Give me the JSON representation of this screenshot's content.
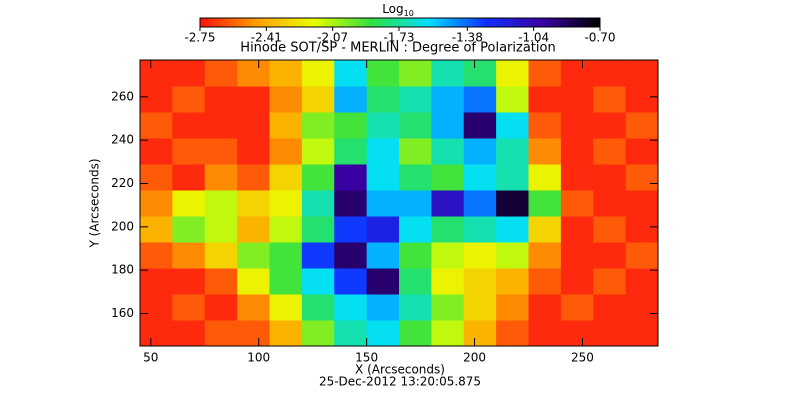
{
  "chart_data": {
    "type": "heatmap",
    "title": "Hinode SOT/SP - MERLIN : Degree of Polarization",
    "subtitle": "25-Dec-2012 13:20:05.875",
    "x_label": "X (Arcseconds)",
    "y_label": "Y (Arcseconds)",
    "colorbar_title": "Log",
    "colorbar_title_sub": "10",
    "xlim": [
      45,
      285
    ],
    "ylim": [
      145,
      277
    ],
    "xticks": [
      50,
      100,
      150,
      200,
      250
    ],
    "yticks": [
      160,
      180,
      200,
      220,
      240,
      260
    ],
    "xbins": [
      45,
      60,
      75,
      90,
      105,
      120,
      135,
      150,
      165,
      180,
      195,
      210,
      225,
      240,
      255,
      270,
      285
    ],
    "ybins": [
      145,
      157,
      169,
      181,
      193,
      205,
      217,
      229,
      241,
      253,
      265,
      277
    ],
    "zlim": [
      -2.75,
      -0.7
    ],
    "zticks": [
      -2.75,
      -2.41,
      -2.07,
      -1.73,
      -1.38,
      -1.04,
      {
        "value": -0.7,
        "label": "-0.70"
      }
    ],
    "colorscale": [
      "#ff1010",
      "#ffa000",
      "#e8ff00",
      "#30e040",
      "#00e0ff",
      "#1030ff",
      "#3a00a0",
      "#000000"
    ],
    "z": [
      [
        -2.7,
        -2.7,
        -2.6,
        -2.6,
        -2.4,
        -2.0,
        -1.7,
        -1.6,
        -1.9,
        -2.1,
        -2.4,
        -2.6,
        -2.7,
        -2.7,
        -2.7,
        -2.7
      ],
      [
        -2.7,
        -2.6,
        -2.7,
        -2.5,
        -2.2,
        -1.8,
        -1.6,
        -1.5,
        -1.7,
        -2.0,
        -2.3,
        -2.5,
        -2.7,
        -2.6,
        -2.7,
        -2.7
      ],
      [
        -2.7,
        -2.7,
        -2.6,
        -2.2,
        -1.9,
        -1.6,
        -1.3,
        -0.9,
        -1.8,
        -2.2,
        -2.3,
        -2.4,
        -2.6,
        -2.7,
        -2.6,
        -2.7
      ],
      [
        -2.6,
        -2.5,
        -2.3,
        -2.0,
        -1.9,
        -1.3,
        -0.9,
        -1.5,
        -1.9,
        -2.1,
        -2.2,
        -2.1,
        -2.5,
        -2.7,
        -2.7,
        -2.6
      ],
      [
        -2.4,
        -2.0,
        -2.1,
        -2.4,
        -2.1,
        -1.8,
        -1.3,
        -1.2,
        -1.6,
        -1.8,
        -1.7,
        -1.6,
        -2.3,
        -2.7,
        -2.6,
        -2.7
      ],
      [
        -2.5,
        -2.2,
        -2.1,
        -2.3,
        -2.2,
        -1.7,
        -0.9,
        -1.5,
        -1.5,
        -1.1,
        -1.4,
        -0.8,
        -1.9,
        -2.6,
        -2.7,
        -2.7
      ],
      [
        -2.6,
        -2.7,
        -2.5,
        -2.6,
        -2.3,
        -1.9,
        -1.0,
        -1.6,
        -1.8,
        -1.9,
        -1.6,
        -1.7,
        -2.2,
        -2.7,
        -2.7,
        -2.6
      ],
      [
        -2.7,
        -2.6,
        -2.6,
        -2.7,
        -2.5,
        -2.1,
        -1.8,
        -1.6,
        -2.0,
        -1.7,
        -1.5,
        -1.7,
        -2.5,
        -2.7,
        -2.6,
        -2.7
      ],
      [
        -2.6,
        -2.7,
        -2.7,
        -2.7,
        -2.4,
        -2.0,
        -1.9,
        -1.7,
        -1.8,
        -1.5,
        -0.9,
        -1.6,
        -2.6,
        -2.7,
        -2.7,
        -2.6
      ],
      [
        -2.7,
        -2.6,
        -2.7,
        -2.7,
        -2.5,
        -2.3,
        -1.5,
        -1.8,
        -1.7,
        -1.5,
        -1.4,
        -2.1,
        -2.7,
        -2.7,
        -2.6,
        -2.7
      ],
      [
        -2.7,
        -2.7,
        -2.6,
        -2.5,
        -2.4,
        -2.2,
        -1.6,
        -1.9,
        -2.0,
        -1.7,
        -1.8,
        -2.2,
        -2.6,
        -2.7,
        -2.7,
        -2.7
      ]
    ]
  }
}
